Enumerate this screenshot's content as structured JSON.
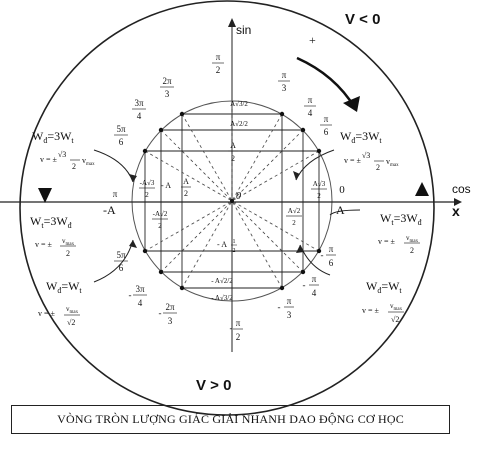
{
  "axes": {
    "sin": "sin",
    "cos": "cos",
    "x": "x",
    "origin": "0"
  },
  "velocity": {
    "negative": "V < 0",
    "positive": "V > 0"
  },
  "rotation_sign": "+",
  "caption": "VÒNG TRÒN LƯỢNG GIÁC GIẢI NHANH DAO ĐỘNG CƠ HỌC",
  "angles": {
    "top": [
      "π",
      "2"
    ],
    "bottom": [
      "-",
      "π",
      "2"
    ],
    "pi_3": [
      "π",
      "3"
    ],
    "pi_4": [
      "π",
      "4"
    ],
    "pi_6": [
      "π",
      "6"
    ],
    "two_pi_3": [
      "2π",
      "3"
    ],
    "three_pi_4": [
      "3π",
      "4"
    ],
    "five_pi_6": [
      "5π",
      "6"
    ],
    "pi": "π",
    "zero": "0",
    "m_pi_6": [
      "-",
      "π",
      "6"
    ],
    "m_pi_4": [
      "-",
      "π",
      "4"
    ],
    "m_pi_3": [
      "-",
      "π",
      "3"
    ],
    "m_five_pi_6": [
      "5π",
      "6"
    ],
    "m_three_pi_4": [
      "-",
      "3π",
      "4"
    ],
    "m_two_pi_3": [
      "-",
      "2π",
      "3"
    ]
  },
  "amplitudes": {
    "A": "A",
    "minus_A": "-A",
    "a_sqrt3_2": "A√3/2",
    "a_sqrt2_2": "A√2/2",
    "a_half": [
      "A",
      "2"
    ],
    "minus_a_half": "- A",
    "minus_a_half_den": "2",
    "minus_a_half_side": [
      "A",
      "2"
    ],
    "minus_a_sqrt2_2_v": "- A√2/2",
    "minus_a_sqrt3_2_v": "- A√3/2",
    "minus_a_half_v": [
      "- A",
      "1",
      "2"
    ],
    "side_sqrt3": [
      "A√3",
      "2"
    ],
    "side_sqrt2": [
      "A√2",
      "2"
    ],
    "left_sqrt3": [
      "-A√3",
      "2"
    ],
    "left_sqrt2": [
      "-A√2",
      "2"
    ]
  },
  "energy": {
    "wd3wt": [
      "W",
      "đ",
      "=3W",
      "t"
    ],
    "wt3wd": [
      "W",
      "t",
      "=3W",
      "đ"
    ],
    "wd_eq_wt": [
      "W",
      "đ",
      "=W",
      "t"
    ],
    "v_sqrt3": [
      "v = ±",
      "√3",
      "2",
      "v",
      "max"
    ],
    "v_half": [
      "v = ±",
      "v",
      "max",
      "2"
    ],
    "v_sqrt2": [
      "v = ±",
      "v",
      "max",
      "√2"
    ]
  }
}
